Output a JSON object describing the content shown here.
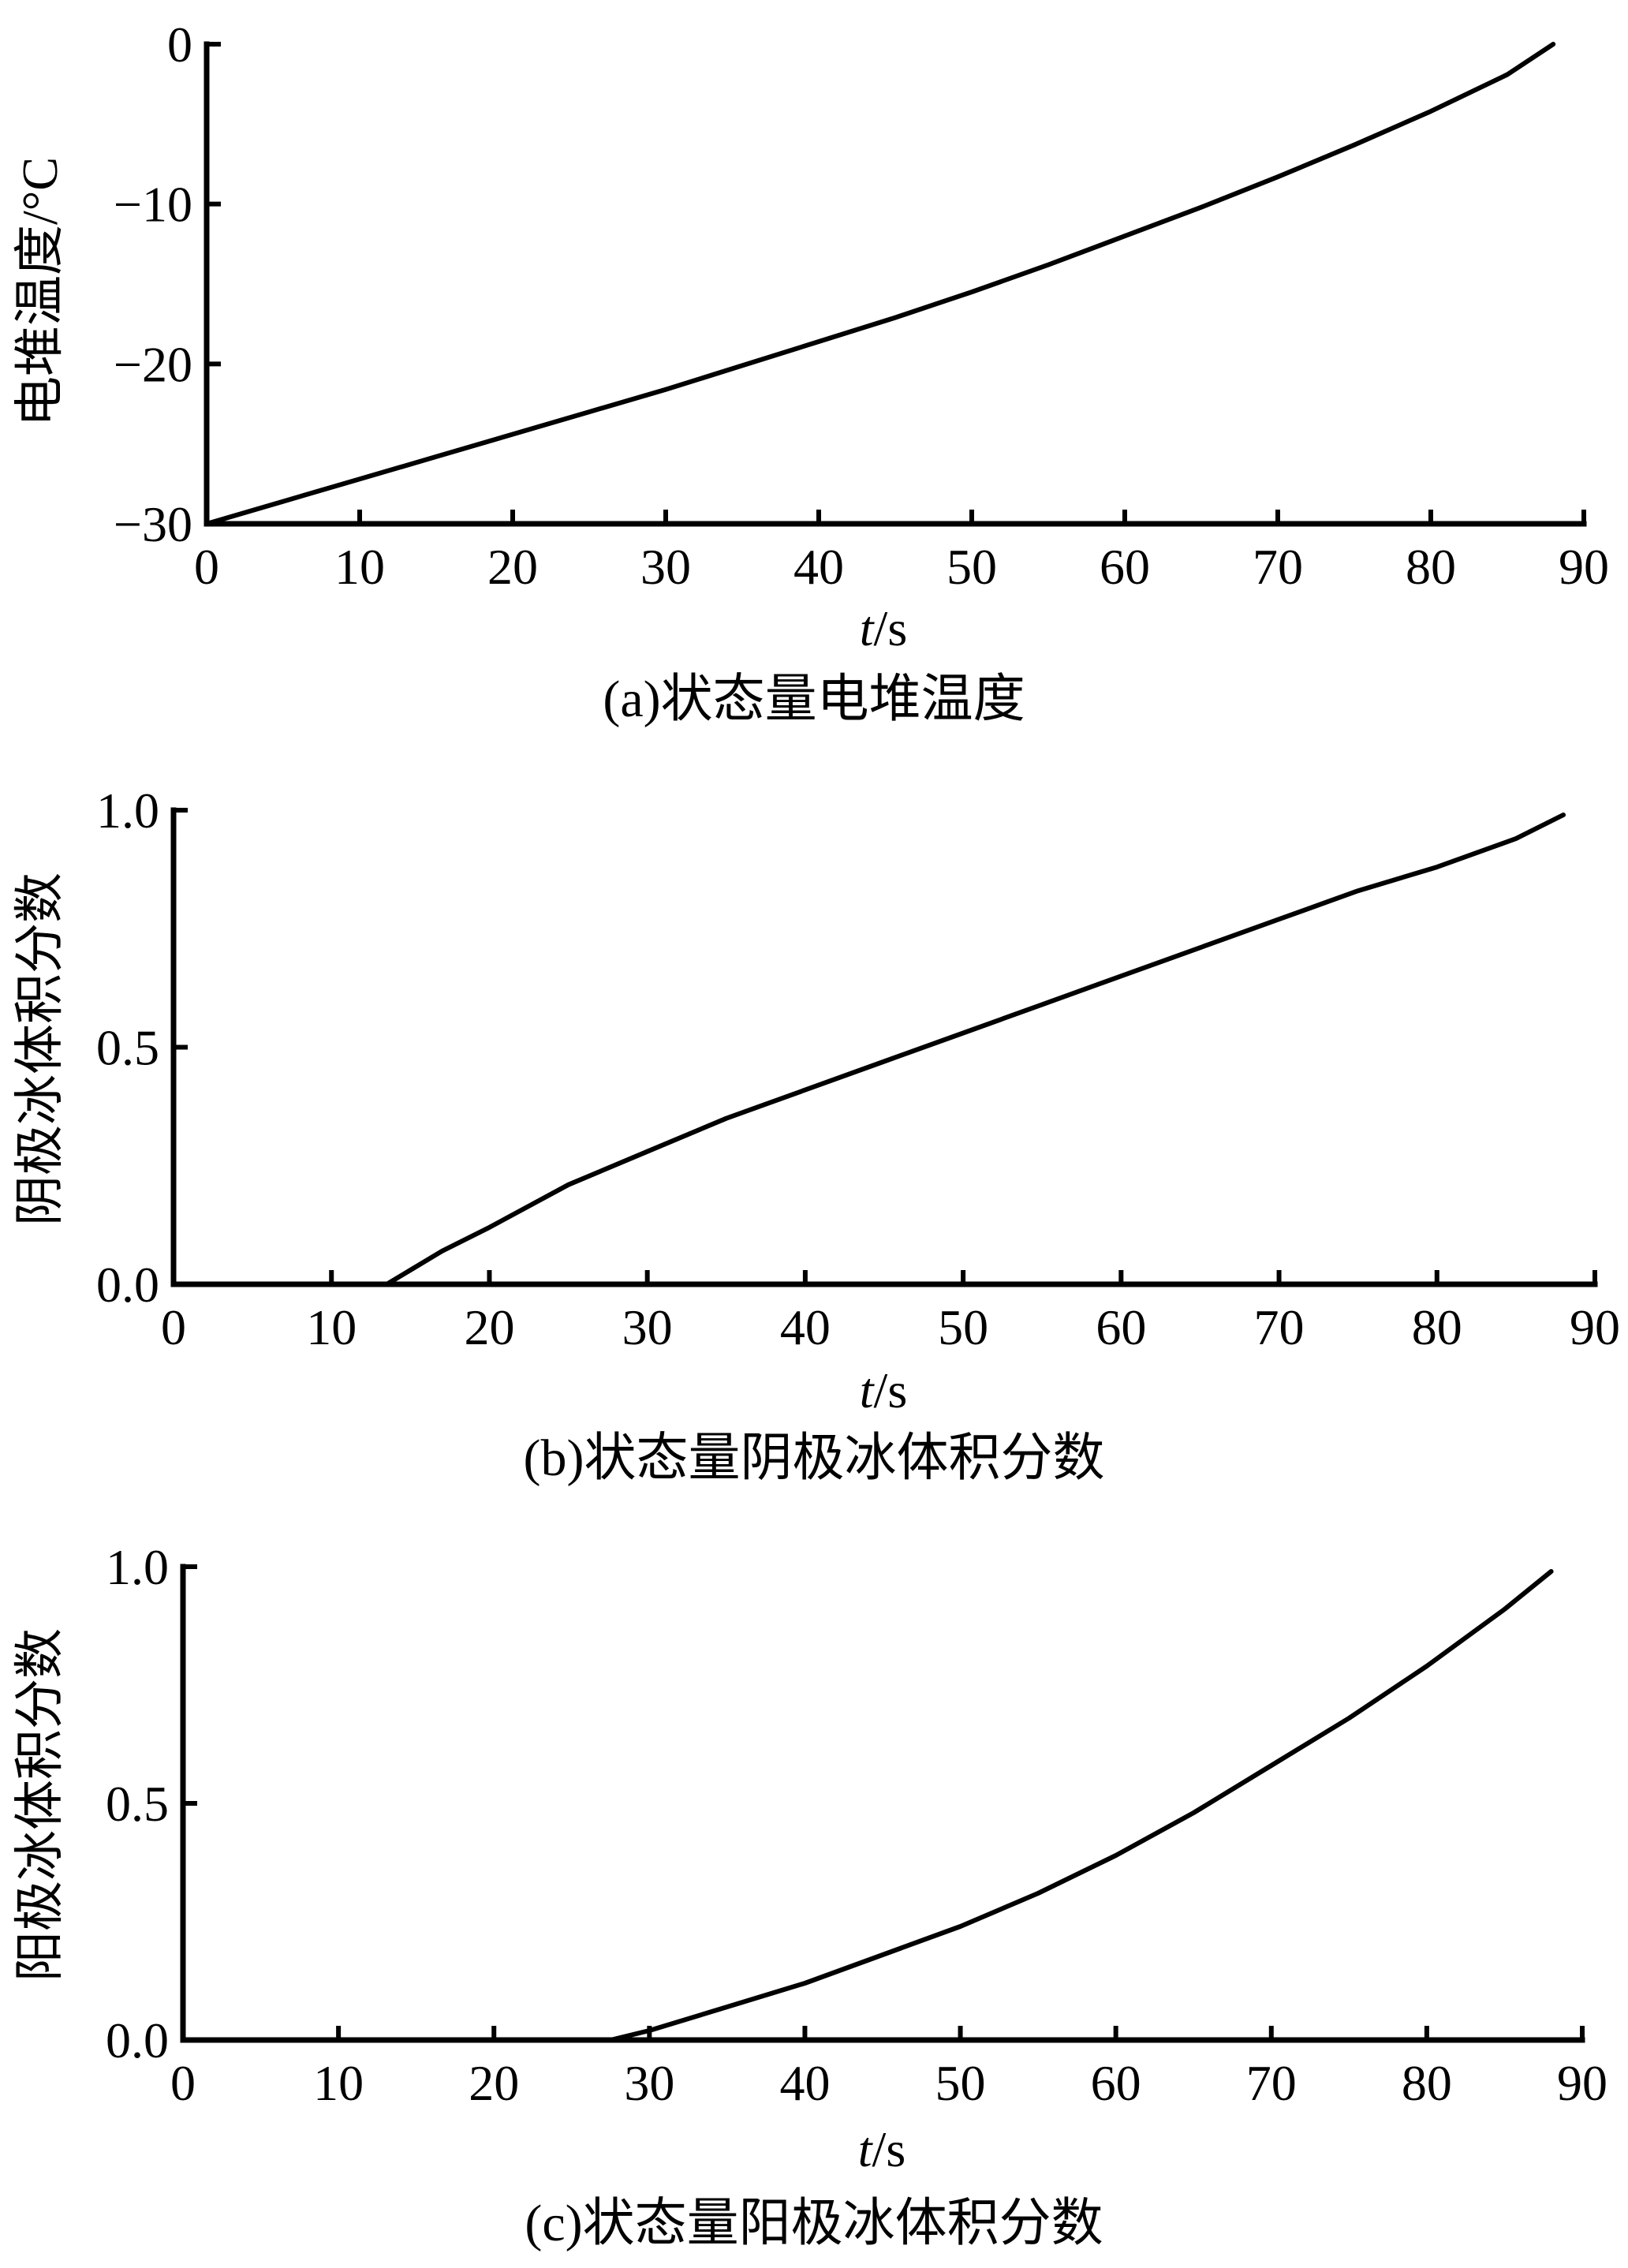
{
  "chart_data": [
    {
      "id": "a",
      "type": "line",
      "caption": "(a)状态量电堆温度",
      "xlabel_italic": "t",
      "xlabel_unit": "/s",
      "ylabel": "电堆温度/°C",
      "xlim": [
        0,
        90
      ],
      "ylim": [
        -30,
        0
      ],
      "xticks": [
        0,
        10,
        20,
        30,
        40,
        50,
        60,
        70,
        80,
        90
      ],
      "xtick_labels": [
        "0",
        "10",
        "20",
        "30",
        "40",
        "50",
        "60",
        "70",
        "80",
        "90"
      ],
      "yticks": [
        -30,
        -20,
        -10,
        0
      ],
      "ytick_labels": [
        "−30",
        "−20",
        "−10",
        "0"
      ],
      "series": [
        {
          "x": [
            0,
            5,
            10,
            15,
            20,
            25,
            30,
            35,
            40,
            45,
            50,
            55,
            60,
            65,
            70,
            75,
            80,
            85,
            88
          ],
          "y": [
            -30,
            -28.6,
            -27.2,
            -25.8,
            -24.4,
            -23.0,
            -21.6,
            -20.1,
            -18.6,
            -17.1,
            -15.5,
            -13.8,
            -12.0,
            -10.2,
            -8.3,
            -6.3,
            -4.2,
            -1.9,
            0
          ]
        }
      ]
    },
    {
      "id": "b",
      "type": "line",
      "caption": "(b)状态量阴极冰体积分数",
      "xlabel_italic": "t",
      "xlabel_unit": "/s",
      "ylabel": "阴极冰体积分数",
      "xlim": [
        0,
        90
      ],
      "ylim": [
        0,
        1
      ],
      "xticks": [
        0,
        10,
        20,
        30,
        40,
        50,
        60,
        70,
        80,
        90
      ],
      "xtick_labels": [
        "0",
        "10",
        "20",
        "30",
        "40",
        "50",
        "60",
        "70",
        "80",
        "90"
      ],
      "yticks": [
        0,
        0.5,
        1
      ],
      "ytick_labels": [
        "0.0",
        "0.5",
        "1.0"
      ],
      "series": [
        {
          "x": [
            0,
            13.5,
            15,
            17,
            20,
            25,
            30,
            35,
            40,
            45,
            50,
            55,
            60,
            65,
            70,
            75,
            80,
            85,
            88
          ],
          "y": [
            0,
            0,
            0.03,
            0.07,
            0.12,
            0.21,
            0.28,
            0.35,
            0.41,
            0.47,
            0.53,
            0.59,
            0.65,
            0.71,
            0.77,
            0.83,
            0.88,
            0.94,
            0.99
          ]
        }
      ]
    },
    {
      "id": "c",
      "type": "line",
      "caption": "(c)状态量阳极冰体积分数",
      "xlabel_italic": "t",
      "xlabel_unit": "/s",
      "ylabel": "阳极冰体积分数",
      "xlim": [
        0,
        90
      ],
      "ylim": [
        0,
        1
      ],
      "xticks": [
        0,
        10,
        20,
        30,
        40,
        50,
        60,
        70,
        80,
        90
      ],
      "xtick_labels": [
        "0",
        "10",
        "20",
        "30",
        "40",
        "50",
        "60",
        "70",
        "80",
        "90"
      ],
      "yticks": [
        0,
        0.5,
        1
      ],
      "ytick_labels": [
        "0.0",
        "0.5",
        "1.0"
      ],
      "series": [
        {
          "x": [
            0,
            27.5,
            30,
            35,
            40,
            45,
            50,
            55,
            60,
            65,
            70,
            75,
            80,
            85,
            88
          ],
          "y": [
            0,
            0,
            0.02,
            0.07,
            0.12,
            0.18,
            0.24,
            0.31,
            0.39,
            0.48,
            0.58,
            0.68,
            0.79,
            0.91,
            0.99
          ]
        }
      ]
    }
  ]
}
